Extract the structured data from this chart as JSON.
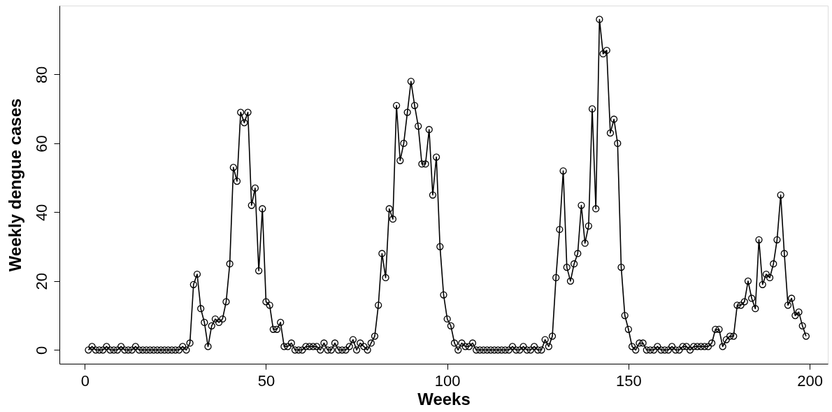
{
  "chart_data": {
    "type": "line",
    "xlabel": "Weeks",
    "ylabel": "Weekly dengue cases",
    "xlim": [
      -7,
      205
    ],
    "ylim": [
      -4,
      100
    ],
    "xticks": [
      0,
      50,
      100,
      150,
      200
    ],
    "yticks": [
      0,
      20,
      40,
      60,
      80
    ],
    "grid": false,
    "marker": "circle",
    "line_style": "solid",
    "series": [
      {
        "color": "#000000",
        "x": [
          1,
          2,
          3,
          4,
          5,
          6,
          7,
          8,
          9,
          10,
          11,
          12,
          13,
          14,
          15,
          16,
          17,
          18,
          19,
          20,
          21,
          22,
          23,
          24,
          25,
          26,
          27,
          28,
          29,
          30,
          31,
          32,
          33,
          34,
          35,
          36,
          37,
          38,
          39,
          40,
          41,
          42,
          43,
          44,
          45,
          46,
          47,
          48,
          49,
          50,
          51,
          52,
          53,
          54,
          55,
          56,
          57,
          58,
          59,
          60,
          61,
          62,
          63,
          64,
          65,
          66,
          67,
          68,
          69,
          70,
          71,
          72,
          73,
          74,
          75,
          76,
          77,
          78,
          79,
          80,
          81,
          82,
          83,
          84,
          85,
          86,
          87,
          88,
          89,
          90,
          91,
          92,
          93,
          94,
          95,
          96,
          97,
          98,
          99,
          100,
          101,
          102,
          103,
          104,
          105,
          106,
          107,
          108,
          109,
          110,
          111,
          112,
          113,
          114,
          115,
          116,
          117,
          118,
          119,
          120,
          121,
          122,
          123,
          124,
          125,
          126,
          127,
          128,
          129,
          130,
          131,
          132,
          133,
          134,
          135,
          136,
          137,
          138,
          139,
          140,
          141,
          142,
          143,
          144,
          145,
          146,
          147,
          148,
          149,
          150,
          151,
          152,
          153,
          154,
          155,
          156,
          157,
          158,
          159,
          160,
          161,
          162,
          163,
          164,
          165,
          166,
          167,
          168,
          169,
          170,
          171,
          172,
          173,
          174,
          175,
          176,
          177,
          178,
          179,
          180,
          181,
          182,
          183,
          184,
          185,
          186,
          187,
          188,
          189,
          190,
          191,
          192,
          193,
          194,
          195,
          196,
          197,
          198,
          199
        ],
        "values": [
          0,
          1,
          0,
          0,
          0,
          1,
          0,
          0,
          0,
          1,
          0,
          0,
          0,
          1,
          0,
          0,
          0,
          0,
          0,
          0,
          0,
          0,
          0,
          0,
          0,
          0,
          1,
          0,
          2,
          19,
          22,
          12,
          8,
          1,
          7,
          9,
          8,
          9,
          14,
          25,
          53,
          49,
          69,
          66,
          69,
          42,
          47,
          23,
          41,
          14,
          13,
          6,
          6,
          8,
          1,
          1,
          2,
          0,
          0,
          0,
          1,
          1,
          1,
          1,
          0,
          2,
          0,
          0,
          2,
          0,
          0,
          0,
          1,
          3,
          0,
          2,
          1,
          0,
          2,
          4,
          13,
          28,
          21,
          41,
          38,
          71,
          55,
          60,
          69,
          78,
          71,
          65,
          54,
          54,
          64,
          45,
          56,
          30,
          16,
          9,
          7,
          2,
          0,
          2,
          1,
          1,
          2,
          0,
          0,
          0,
          0,
          0,
          0,
          0,
          0,
          0,
          0,
          1,
          0,
          0,
          1,
          0,
          0,
          1,
          0,
          0,
          3,
          1,
          4,
          21,
          35,
          52,
          24,
          20,
          25,
          28,
          42,
          31,
          36,
          70,
          41,
          96,
          86,
          87,
          63,
          67,
          60,
          24,
          10,
          6,
          1,
          0,
          2,
          2,
          0,
          0,
          0,
          1,
          0,
          0,
          0,
          1,
          0,
          0,
          1,
          1,
          0,
          1,
          1,
          1,
          1,
          1,
          2,
          6,
          6,
          1,
          3,
          4,
          4,
          13,
          13,
          14,
          20,
          15,
          12,
          32,
          19,
          22,
          21,
          25,
          32,
          45,
          28,
          13,
          15,
          10,
          11,
          7,
          4
        ]
      }
    ]
  }
}
